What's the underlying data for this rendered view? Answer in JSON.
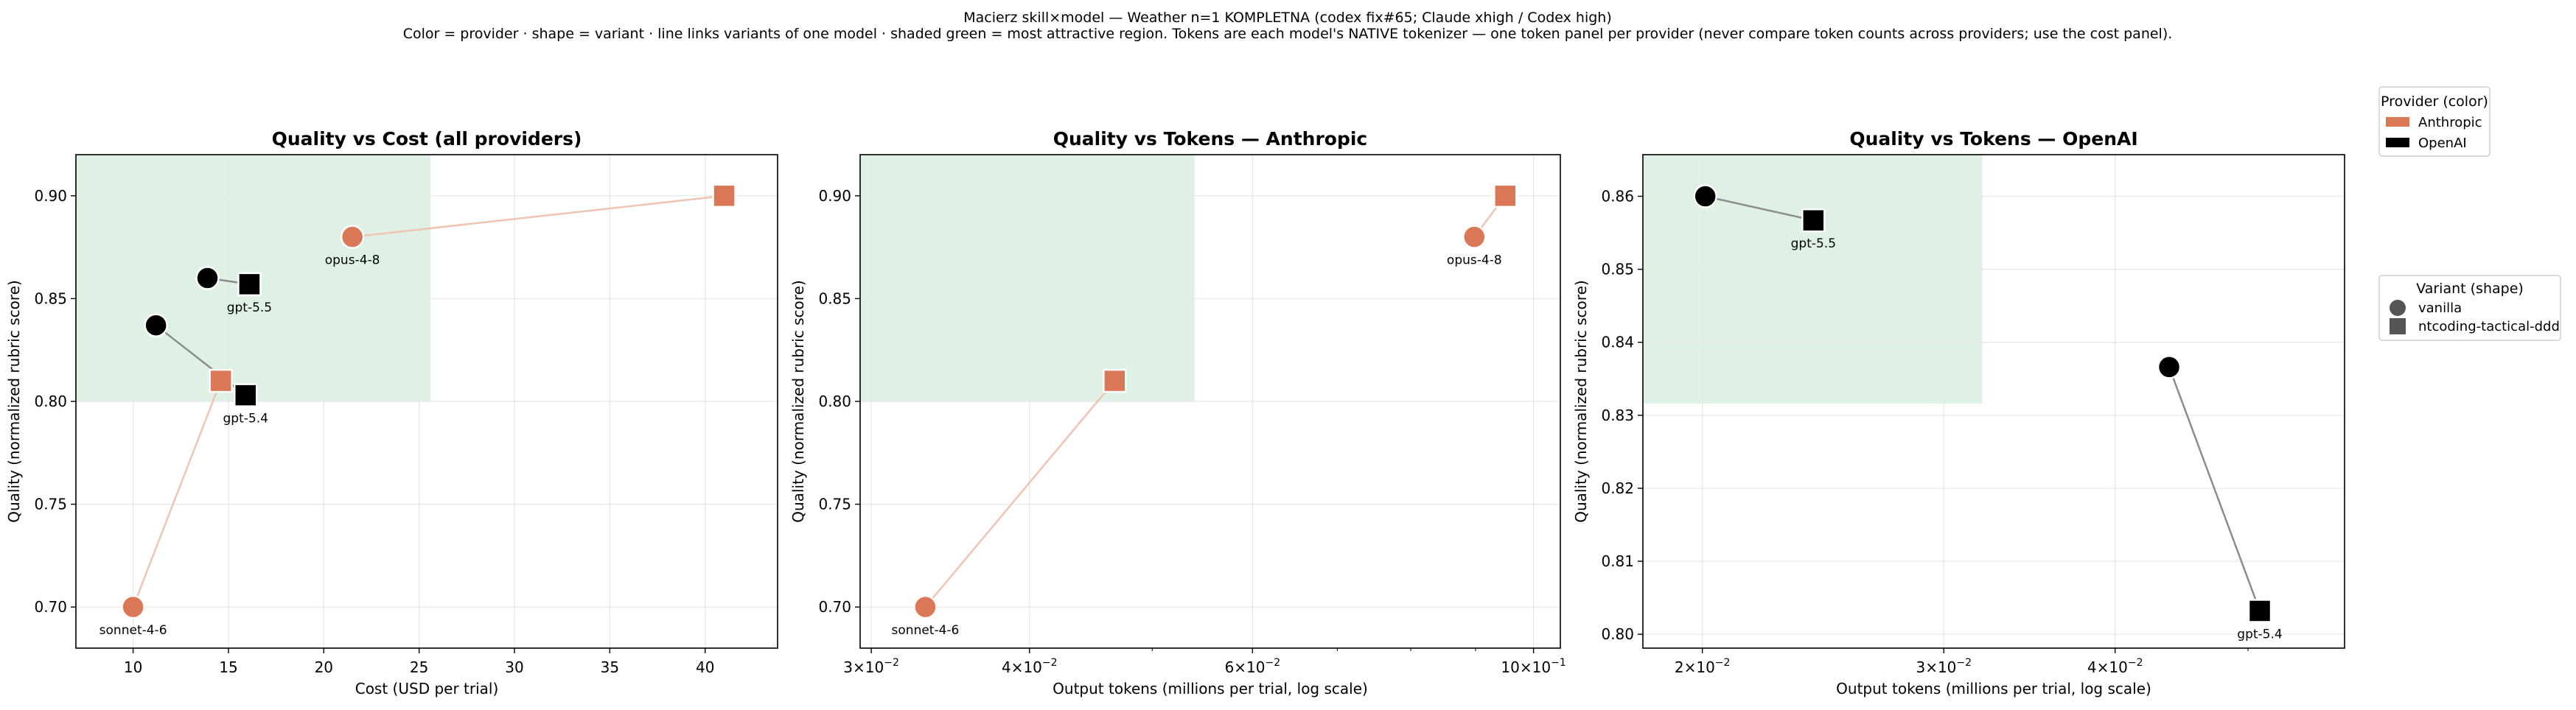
{
  "figure": {
    "suptitle_line1": "Macierz skill×model — Weather n=1 KOMPLETNA (codex fix#65; Claude xhigh / Codex high)",
    "suptitle_line2": "Color = provider · shape = variant · line links variants of one model · shaded green = most attractive region. Tokens are each model's NATIVE tokenizer — one token panel per provider (never compare token counts across providers; use the cost panel)."
  },
  "colors": {
    "Anthropic": "#d97757",
    "OpenAI": "#000000",
    "shade": "#dff1e5",
    "anthropic_line": "#eec5b4",
    "openai_line": "#8c8c8c",
    "grid": "#e6e6e6",
    "legend_marker": "#555555"
  },
  "legend_provider": {
    "title": "Provider (color)",
    "items": [
      {
        "label": "Anthropic",
        "color": "#d97757"
      },
      {
        "label": "OpenAI",
        "color": "#000000"
      }
    ]
  },
  "legend_variant": {
    "title": "Variant (shape)",
    "items": [
      {
        "label": "vanilla",
        "shape": "circle"
      },
      {
        "label": "ntcoding-tactical-ddd",
        "shape": "square"
      }
    ]
  },
  "chart_data": [
    {
      "id": "cost",
      "type": "scatter",
      "title": "Quality vs Cost (all providers)",
      "xlabel": "Cost (USD per trial)",
      "ylabel": "Quality (normalized rubric score)",
      "xscale": "linear",
      "xlim": [
        7.0,
        43.8
      ],
      "ylim": [
        0.68,
        0.92
      ],
      "xticks": [
        10,
        15,
        20,
        25,
        30,
        35,
        40
      ],
      "xtick_labels": [
        "10",
        "15",
        "20",
        "25",
        "30",
        "35",
        "40"
      ],
      "yticks": [
        0.7,
        0.75,
        0.8,
        0.85,
        0.9
      ],
      "ytick_labels": [
        "0.70",
        "0.75",
        "0.80",
        "0.85",
        "0.90"
      ],
      "shade": {
        "x": [
          7.0,
          25.6
        ],
        "y": [
          0.8,
          0.92
        ]
      },
      "grid": true,
      "points": [
        {
          "provider": "Anthropic",
          "model": "sonnet-4-6",
          "variant": "vanilla",
          "x": 10.0,
          "y": 0.7,
          "label": "sonnet-4-6"
        },
        {
          "provider": "Anthropic",
          "model": "sonnet-4-6",
          "variant": "ntcoding-tactical-ddd",
          "x": 14.6,
          "y": 0.81,
          "label": ""
        },
        {
          "provider": "Anthropic",
          "model": "opus-4-8",
          "variant": "vanilla",
          "x": 21.5,
          "y": 0.88,
          "label": "opus-4-8"
        },
        {
          "provider": "Anthropic",
          "model": "opus-4-8",
          "variant": "ntcoding-tactical-ddd",
          "x": 41.0,
          "y": 0.9,
          "label": ""
        },
        {
          "provider": "OpenAI",
          "model": "gpt-5.5",
          "variant": "vanilla",
          "x": 13.9,
          "y": 0.86,
          "label": ""
        },
        {
          "provider": "OpenAI",
          "model": "gpt-5.5",
          "variant": "ntcoding-tactical-ddd",
          "x": 16.1,
          "y": 0.857,
          "label": "gpt-5.5"
        },
        {
          "provider": "OpenAI",
          "model": "gpt-5.4",
          "variant": "vanilla",
          "x": 11.2,
          "y": 0.837,
          "label": ""
        },
        {
          "provider": "OpenAI",
          "model": "gpt-5.4",
          "variant": "ntcoding-tactical-ddd",
          "x": 15.9,
          "y": 0.803,
          "label": "gpt-5.4"
        }
      ]
    },
    {
      "id": "tok-anthropic",
      "type": "scatter",
      "title": "Quality vs Tokens — Anthropic",
      "xlabel": "Output tokens (millions per trial, log scale)",
      "ylabel": "Quality (normalized rubric score)",
      "xscale": "log",
      "xlim": [
        0.0294,
        0.105
      ],
      "ylim": [
        0.68,
        0.92
      ],
      "xticks": [
        0.03,
        0.04,
        0.06,
        0.1
      ],
      "xtick_labels": [
        [
          "3",
          "−2"
        ],
        [
          "4",
          "−2"
        ],
        [
          "6",
          "−2"
        ],
        [
          "10",
          "−1"
        ]
      ],
      "xminor": [
        0.05,
        0.07,
        0.08,
        0.09
      ],
      "yticks": [
        0.7,
        0.75,
        0.8,
        0.85,
        0.9
      ],
      "ytick_labels": [
        "0.70",
        "0.75",
        "0.80",
        "0.85",
        "0.90"
      ],
      "shade": {
        "x": [
          0.0294,
          0.054
        ],
        "y": [
          0.8,
          0.92
        ]
      },
      "grid": true,
      "points": [
        {
          "provider": "Anthropic",
          "model": "sonnet-4-6",
          "variant": "vanilla",
          "x": 0.0331,
          "y": 0.7,
          "label": "sonnet-4-6"
        },
        {
          "provider": "Anthropic",
          "model": "sonnet-4-6",
          "variant": "ntcoding-tactical-ddd",
          "x": 0.0467,
          "y": 0.81,
          "label": ""
        },
        {
          "provider": "Anthropic",
          "model": "opus-4-8",
          "variant": "vanilla",
          "x": 0.0898,
          "y": 0.88,
          "label": "opus-4-8"
        },
        {
          "provider": "Anthropic",
          "model": "opus-4-8",
          "variant": "ntcoding-tactical-ddd",
          "x": 0.095,
          "y": 0.9,
          "label": ""
        }
      ]
    },
    {
      "id": "tok-openai",
      "type": "scatter",
      "title": "Quality vs Tokens — OpenAI",
      "xlabel": "Output tokens (millions per trial, log scale)",
      "ylabel": "Quality (normalized rubric score)",
      "xscale": "log",
      "xlim": [
        0.0181,
        0.0588
      ],
      "ylim": [
        0.7981,
        0.8657
      ],
      "xticks": [
        0.02,
        0.03,
        0.04
      ],
      "xtick_labels": [
        [
          "2",
          "−2"
        ],
        [
          "3",
          "−2"
        ],
        [
          "4",
          "−2"
        ]
      ],
      "xminor": [
        0.05
      ],
      "yticks": [
        0.8,
        0.81,
        0.82,
        0.83,
        0.84,
        0.85,
        0.86
      ],
      "ytick_labels": [
        "0.80",
        "0.81",
        "0.82",
        "0.83",
        "0.84",
        "0.85",
        "0.86"
      ],
      "shade": {
        "x": [
          0.0181,
          0.032
        ],
        "y": [
          0.8316,
          0.8657
        ]
      },
      "grid": true,
      "points": [
        {
          "provider": "OpenAI",
          "model": "gpt-5.5",
          "variant": "vanilla",
          "x": 0.0201,
          "y": 0.86,
          "label": ""
        },
        {
          "provider": "OpenAI",
          "model": "gpt-5.5",
          "variant": "ntcoding-tactical-ddd",
          "x": 0.0241,
          "y": 0.8567,
          "label": "gpt-5.5"
        },
        {
          "provider": "OpenAI",
          "model": "gpt-5.4",
          "variant": "vanilla",
          "x": 0.0438,
          "y": 0.8366,
          "label": ""
        },
        {
          "provider": "OpenAI",
          "model": "gpt-5.4",
          "variant": "ntcoding-tactical-ddd",
          "x": 0.051,
          "y": 0.8032,
          "label": "gpt-5.4"
        }
      ]
    }
  ]
}
